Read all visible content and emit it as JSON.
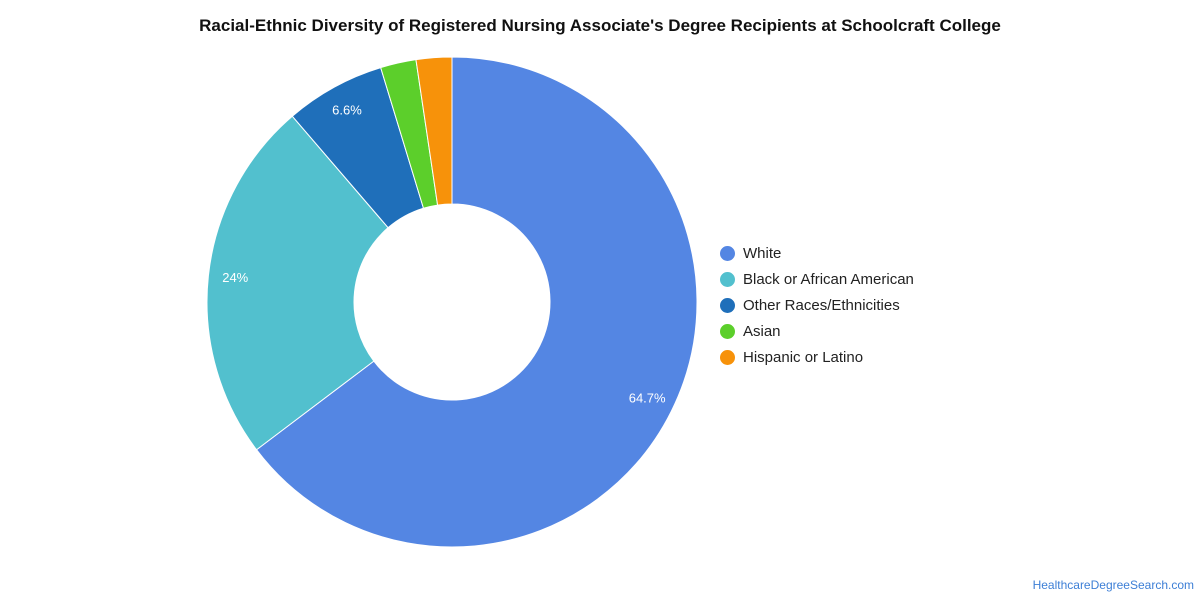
{
  "chart_data": {
    "type": "pie",
    "title": "Racial-Ethnic Diversity of Registered Nursing Associate's Degree Recipients at Schoolcraft College",
    "donut": true,
    "legend_position": "right",
    "slices": [
      {
        "label": "White",
        "value": 64.7,
        "display": "64.7%",
        "color": "#5486e3"
      },
      {
        "label": "Black or African American",
        "value": 24,
        "display": "24%",
        "color": "#52c0ce"
      },
      {
        "label": "Other Races/Ethnicities",
        "value": 6.6,
        "display": "6.6%",
        "color": "#1f6fba"
      },
      {
        "label": "Asian",
        "value": 2.35,
        "display": "",
        "color": "#5ccf2b"
      },
      {
        "label": "Hispanic or Latino",
        "value": 2.35,
        "display": "",
        "color": "#f7920a"
      }
    ]
  },
  "footer": {
    "source": "HealthcareDegreeSearch.com"
  }
}
